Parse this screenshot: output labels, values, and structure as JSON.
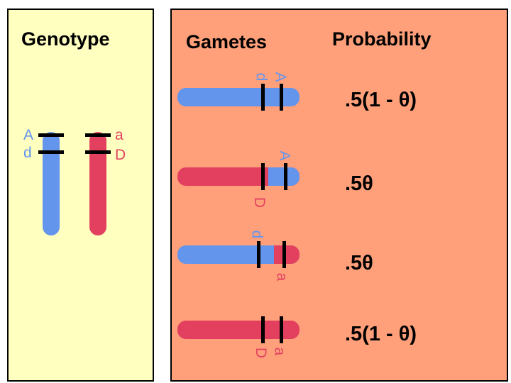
{
  "headers": {
    "genotype": "Genotype",
    "gametes": "Gametes",
    "probability": "Probability"
  },
  "genotype": {
    "left_chromosome": {
      "color": "#6495ed",
      "alleles": [
        "A",
        "d"
      ]
    },
    "right_chromosome": {
      "color": "#e34060",
      "alleles": [
        "a",
        "D"
      ]
    }
  },
  "gametes": [
    {
      "alleles": [
        "A",
        "d"
      ],
      "probability": ".5(1 - θ)"
    },
    {
      "alleles": [
        "A",
        "D"
      ],
      "probability": ".5θ"
    },
    {
      "alleles": [
        "d",
        "a"
      ],
      "probability": ".5θ"
    },
    {
      "alleles": [
        "a",
        "D"
      ],
      "probability": ".5(1 - θ)"
    }
  ],
  "colors": {
    "left_panel": "#ffffc0",
    "right_panel": "#ffa07a",
    "blue": "#6495ed",
    "red": "#e34060"
  }
}
